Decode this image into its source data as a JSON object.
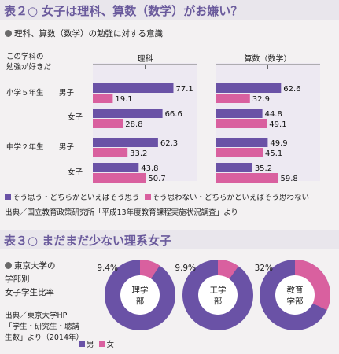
{
  "table2": {
    "title": "表２○ 女子は理科、算数（数学）がお嫌い？",
    "subtitle": "理科、算数（数学）の勉強に対する意識",
    "question": [
      "この学科の",
      "勉強が好きだ"
    ],
    "legend_agree": "そう思う・どちらかといえばそう思う",
    "legend_disagree": "そう思わない・どちらかといえばそう思わない",
    "source": "出典／国立教育政策研究所「平成13年度教育課程実施状況調査」より"
  },
  "table3": {
    "title": "表３○ まだまだ少ない理系女子",
    "label": [
      "東京大学の",
      "学部別",
      "女子学生比率"
    ],
    "source": [
      "出典／東京大学HP",
      "「学生・研究生・聴講",
      "生数」より（2014年）"
    ],
    "legend_male": "男",
    "legend_female": "女"
  },
  "colors": {
    "male": "#6a52a6",
    "female": "#d9609f",
    "header": "#6a5a9c",
    "track": "#ede9f2"
  },
  "chart_data": [
    {
      "type": "bar",
      "orientation": "horizontal",
      "panels": [
        "理科",
        "算数（数学）"
      ],
      "groups": [
        {
          "label": "小学５年生",
          "rows": [
            {
              "label": "男子",
              "rika": [
                77.1,
                19.1
              ],
              "sansu": [
                62.6,
                32.9
              ]
            },
            {
              "label": "女子",
              "rika": [
                66.6,
                28.8
              ],
              "sansu": [
                44.8,
                49.1
              ]
            }
          ]
        },
        {
          "label": "中学２年生",
          "rows": [
            {
              "label": "男子",
              "rika": [
                62.3,
                33.2
              ],
              "sansu": [
                49.9,
                45.1
              ]
            },
            {
              "label": "女子",
              "rika": [
                43.8,
                50.7
              ],
              "sansu": [
                35.2,
                59.8
              ]
            }
          ]
        }
      ],
      "series": [
        {
          "name": "そう思う・どちらかといえばそう思う",
          "color": "#6a52a6"
        },
        {
          "name": "そう思わない・どちらかといえばそう思わない",
          "color": "#d9609f"
        }
      ],
      "xlim": [
        0,
        100
      ]
    },
    {
      "type": "pie",
      "charts": [
        {
          "label": [
            "理学",
            "部"
          ],
          "female": 9.4,
          "female_label": "9.4%"
        },
        {
          "label": [
            "工学",
            "部"
          ],
          "female": 9.9,
          "female_label": "9.9%"
        },
        {
          "label": [
            "教育",
            "学部"
          ],
          "female": 32,
          "female_label": "32%"
        }
      ],
      "series": [
        {
          "name": "男",
          "color": "#6a52a6"
        },
        {
          "name": "女",
          "color": "#d9609f"
        }
      ]
    }
  ]
}
